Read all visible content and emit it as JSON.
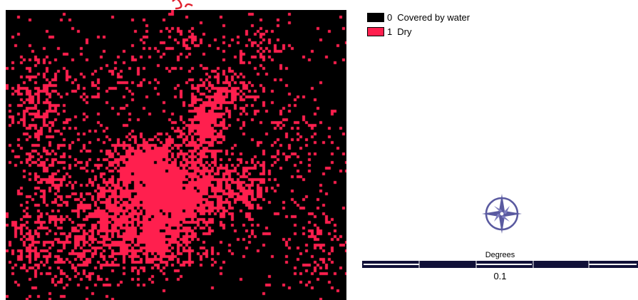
{
  "colors": {
    "water": "#000000",
    "dry": "#ff1f4e",
    "compass": "#5a5aa0",
    "scalebar": "#101038",
    "title_accent": "#e0202e"
  },
  "legend": {
    "items": [
      {
        "value": "0",
        "label": "Covered by water",
        "color": "#000000"
      },
      {
        "value": "1",
        "label": "Dry",
        "color": "#ff1f4e"
      }
    ]
  },
  "compass": {
    "icon": "north-arrow-compass-rose-icon"
  },
  "scale": {
    "unit": "Degrees",
    "value": "0.1"
  }
}
